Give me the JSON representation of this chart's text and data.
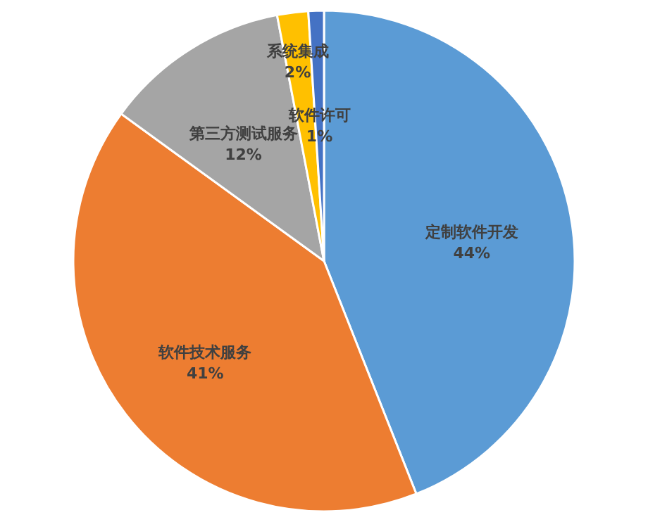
{
  "chart_data": {
    "type": "pie",
    "categories": [
      "定制软件开发",
      "软件技术服务",
      "第三方测试服务",
      "系统集成",
      "软件许可"
    ],
    "values": [
      44,
      41,
      12,
      2,
      1
    ],
    "value_labels": [
      "44%",
      "41%",
      "12%",
      "2%",
      "1%"
    ],
    "colors": [
      "#5b9bd5",
      "#ed7d31",
      "#a5a5a5",
      "#ffc000",
      "#4472c4"
    ]
  }
}
